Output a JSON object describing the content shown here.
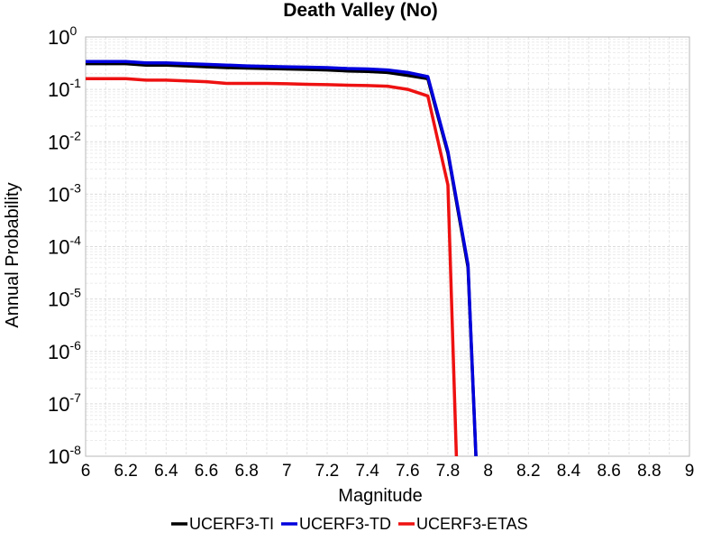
{
  "chart_data": {
    "type": "line",
    "title": "Death Valley (No)",
    "xlabel": "Magnitude",
    "ylabel": "Annual Probability",
    "x_scale": "linear",
    "y_scale": "log",
    "xlim": [
      6,
      9
    ],
    "ylim": [
      1e-08,
      1
    ],
    "x_ticks": [
      6,
      6.2,
      6.4,
      6.6,
      6.8,
      7,
      7.2,
      7.4,
      7.6,
      7.8,
      8,
      8.2,
      8.4,
      8.6,
      8.8,
      9
    ],
    "x_tick_labels": [
      "6",
      "6.2",
      "6.4",
      "6.6",
      "6.8",
      "7",
      "7.2",
      "7.4",
      "7.6",
      "7.8",
      "8",
      "8.2",
      "8.4",
      "8.6",
      "8.8",
      "9"
    ],
    "y_tick_exponents": [
      0,
      -1,
      -2,
      -3,
      -4,
      -5,
      -6,
      -7,
      -8
    ],
    "y_tick_base": "10",
    "grid": true,
    "legend_position": "bottom-center",
    "series": [
      {
        "name": "UCERF3-TI",
        "color": "#000000",
        "x": [
          6.0,
          6.2,
          6.3,
          6.4,
          6.5,
          6.6,
          6.7,
          6.8,
          6.9,
          7.0,
          7.1,
          7.2,
          7.3,
          7.4,
          7.5,
          7.6,
          7.7,
          7.8,
          7.9,
          7.95
        ],
        "y": [
          0.31,
          0.31,
          0.29,
          0.29,
          0.28,
          0.27,
          0.26,
          0.255,
          0.25,
          0.245,
          0.24,
          0.235,
          0.225,
          0.22,
          0.21,
          0.185,
          0.16,
          0.006,
          4e-05,
          1e-09
        ]
      },
      {
        "name": "UCERF3-TD",
        "color": "#0000dd",
        "x": [
          6.0,
          6.2,
          6.3,
          6.4,
          6.5,
          6.6,
          6.7,
          6.8,
          6.9,
          7.0,
          7.1,
          7.2,
          7.3,
          7.4,
          7.5,
          7.6,
          7.7,
          7.8,
          7.9,
          7.95
        ],
        "y": [
          0.34,
          0.34,
          0.32,
          0.32,
          0.31,
          0.3,
          0.29,
          0.28,
          0.275,
          0.27,
          0.265,
          0.26,
          0.25,
          0.245,
          0.235,
          0.21,
          0.175,
          0.0065,
          4.5e-05,
          1e-09
        ]
      },
      {
        "name": "UCERF3-ETAS",
        "color": "#ee1111",
        "x": [
          6.0,
          6.2,
          6.3,
          6.4,
          6.5,
          6.6,
          6.7,
          6.8,
          6.9,
          7.0,
          7.1,
          7.2,
          7.3,
          7.4,
          7.5,
          7.6,
          7.7,
          7.8,
          7.85
        ],
        "y": [
          0.16,
          0.16,
          0.15,
          0.15,
          0.145,
          0.14,
          0.13,
          0.13,
          0.13,
          0.128,
          0.125,
          0.123,
          0.12,
          0.118,
          0.115,
          0.1,
          0.075,
          0.0015,
          1e-09
        ]
      }
    ]
  }
}
